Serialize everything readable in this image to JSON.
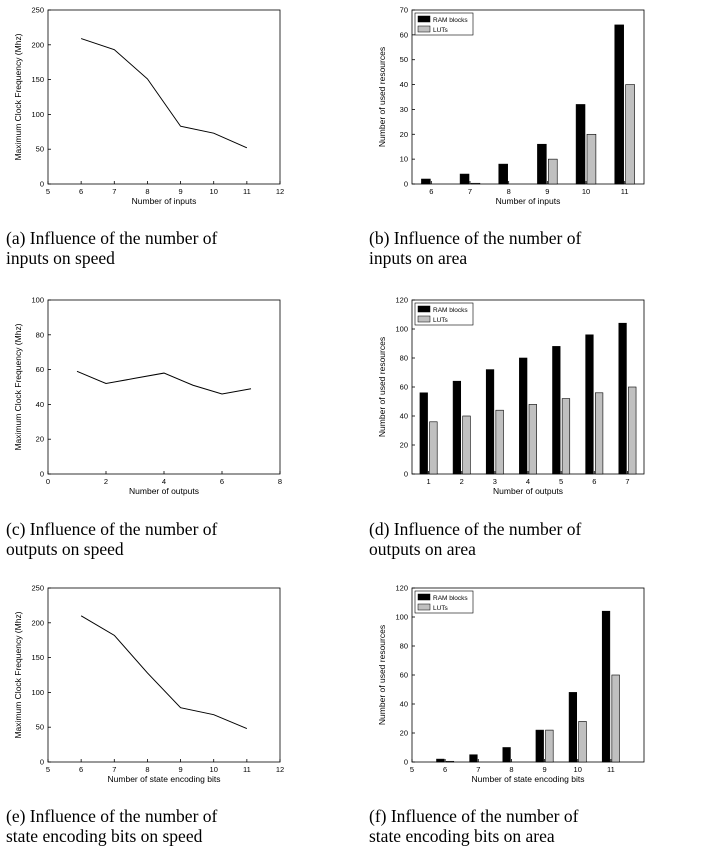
{
  "chart_data": [
    {
      "type": "line",
      "xlabel": "Number of inputs",
      "ylabel": "Maximum Clock Frequency (Mhz)",
      "xlim": [
        5,
        12
      ],
      "ylim": [
        0,
        250
      ],
      "xticks": [
        5,
        6,
        7,
        8,
        9,
        10,
        11,
        12
      ],
      "yticks": [
        0,
        50,
        100,
        150,
        200,
        250
      ],
      "x": [
        6,
        7,
        8,
        9,
        10,
        11
      ],
      "y": [
        209,
        193,
        151,
        83,
        73,
        52
      ],
      "caption": [
        "(a) Influence of the number of",
        "inputs on speed"
      ]
    },
    {
      "type": "bar",
      "xlabel": "Number of inputs",
      "ylabel": "Number of used resources",
      "ylim": [
        0,
        70
      ],
      "yticks": [
        0,
        10,
        20,
        30,
        40,
        50,
        60,
        70
      ],
      "categories": [
        "6",
        "7",
        "8",
        "9",
        "10",
        "11"
      ],
      "series": [
        {
          "name": "RAM blocks",
          "color": "#000000",
          "values": [
            2,
            4,
            8,
            16,
            32,
            64
          ]
        },
        {
          "name": "LUTs",
          "color": "#c0c0c0",
          "values": [
            0,
            0.3,
            0,
            10,
            20,
            40
          ]
        }
      ],
      "legend": "top-left",
      "caption": [
        "(b) Influence of the number of",
        "inputs on area"
      ]
    },
    {
      "type": "line",
      "xlabel": "Number of outputs",
      "ylabel": "Maximum Clock Frequency (Mhz)",
      "xlim": [
        0,
        8
      ],
      "ylim": [
        0,
        100
      ],
      "xticks": [
        0,
        2,
        4,
        6,
        8
      ],
      "yticks": [
        0,
        20,
        40,
        60,
        80,
        100
      ],
      "x": [
        1,
        2,
        3,
        4,
        5,
        6,
        7
      ],
      "y": [
        59,
        52,
        55,
        58,
        51,
        46,
        49
      ],
      "caption": [
        "(c) Influence of the number of",
        "outputs on speed"
      ]
    },
    {
      "type": "bar",
      "xlabel": "Number of outputs",
      "ylabel": "Number of used resources",
      "ylim": [
        0,
        120
      ],
      "yticks": [
        0,
        20,
        40,
        60,
        80,
        100,
        120
      ],
      "categories": [
        "1",
        "2",
        "3",
        "4",
        "5",
        "6",
        "7"
      ],
      "series": [
        {
          "name": "RAM blocks",
          "color": "#000000",
          "values": [
            56,
            64,
            72,
            80,
            88,
            96,
            104
          ]
        },
        {
          "name": "LUTs",
          "color": "#c0c0c0",
          "values": [
            36,
            40,
            44,
            48,
            52,
            56,
            60
          ]
        }
      ],
      "legend": "top-left",
      "caption": [
        "(d) Influence of the number of",
        "outputs on area"
      ]
    },
    {
      "type": "line",
      "xlabel": "Number of state encoding bits",
      "ylabel": "Maximum Clock Frequency (Mhz)",
      "xlim": [
        5,
        12
      ],
      "ylim": [
        0,
        250
      ],
      "xticks": [
        5,
        6,
        7,
        8,
        9,
        10,
        11,
        12
      ],
      "yticks": [
        0,
        50,
        100,
        150,
        200,
        250
      ],
      "x": [
        6,
        7,
        8,
        9,
        10,
        11
      ],
      "y": [
        210,
        182,
        128,
        78,
        68,
        48
      ],
      "caption": [
        "(e) Influence of the number of",
        "state encoding bits on speed"
      ]
    },
    {
      "type": "bar",
      "xlabel": "Number of state encoding bits",
      "ylabel": "Number of used resources",
      "xlim": [
        5,
        12
      ],
      "ylim": [
        0,
        120
      ],
      "xticks": [
        5,
        6,
        7,
        8,
        9,
        10,
        11
      ],
      "yticks": [
        0,
        20,
        40,
        60,
        80,
        100,
        120
      ],
      "categories": [
        "6",
        "7",
        "8",
        "9",
        "10",
        "11"
      ],
      "x": [
        6,
        7,
        8,
        9,
        10,
        11
      ],
      "series": [
        {
          "name": "RAM blocks",
          "color": "#000000",
          "values": [
            2,
            5,
            10,
            22,
            48,
            104
          ]
        },
        {
          "name": "LUTs",
          "color": "#c0c0c0",
          "values": [
            0.5,
            0,
            0,
            22,
            28,
            60
          ]
        }
      ],
      "legend": "top-left",
      "caption": [
        "(f) Influence of the number of",
        "state encoding bits on area"
      ]
    }
  ]
}
